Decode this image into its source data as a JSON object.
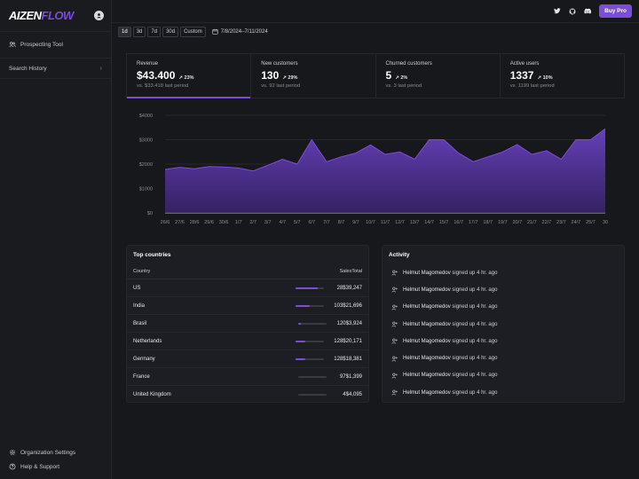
{
  "app": {
    "logo_part1": "AIZEN",
    "logo_part2": "FLOW"
  },
  "sidebar": {
    "items": [
      {
        "label": "Prospecting Tool",
        "icon": "users-icon"
      },
      {
        "label": "Search History",
        "icon": "chevron-right-icon"
      }
    ],
    "bottom": [
      {
        "label": "Organization Settings",
        "icon": "gear-icon"
      },
      {
        "label": "Help & Support",
        "icon": "help-icon"
      }
    ]
  },
  "topbar": {
    "buy_label": "Buy Pro",
    "accent": "#7c4dd8"
  },
  "filters": {
    "ranges": [
      "1d",
      "3d",
      "7d",
      "30d",
      "Custom"
    ],
    "selected": "1d",
    "date_range": "7/8/2024–7/11/2024"
  },
  "stats": [
    {
      "label": "Revenue",
      "value": "$43.400",
      "delta": "23%",
      "prev": "vs. $33.418 last period"
    },
    {
      "label": "New customers",
      "value": "130",
      "delta": "29%",
      "prev": "vs. 92 last period"
    },
    {
      "label": "Churned customers",
      "value": "5",
      "delta": "2%",
      "prev": "vs. 3 last period"
    },
    {
      "label": "Active users",
      "value": "1337",
      "delta": "10%",
      "prev": "vs. 1199 last period"
    }
  ],
  "chart_data": {
    "type": "area",
    "x": [
      "26/6",
      "27/6",
      "28/6",
      "29/6",
      "30/6",
      "1/7",
      "2/7",
      "3/7",
      "4/7",
      "5/7",
      "6/7",
      "7/7",
      "8/7",
      "9/7",
      "10/7",
      "11/7",
      "12/7",
      "13/7",
      "14/7",
      "15/7",
      "16/7",
      "17/7",
      "18/7",
      "19/7",
      "20/7",
      "21/7",
      "22/7",
      "23/7",
      "24/7",
      "25/7",
      "30"
    ],
    "series": [
      {
        "values": [
          1780,
          1870,
          1810,
          1900,
          1880,
          1840,
          1720,
          1950,
          2200,
          2000,
          3000,
          2100,
          2300,
          2450,
          2790,
          2400,
          2500,
          2200,
          3000,
          3000,
          2450,
          2100,
          2300,
          2500,
          2800,
          2400,
          2550,
          2200,
          3000,
          3000,
          3450
        ]
      }
    ],
    "yticks": [
      "$4000",
      "$3000",
      "$2000",
      "$1000",
      "$0"
    ],
    "ylim": [
      0,
      4000
    ],
    "grid": true,
    "color": "#6a42c2"
  },
  "countries": {
    "title": "Top countries",
    "headers": {
      "country": "Country",
      "sales": "Sales",
      "total": "Total"
    },
    "rows": [
      {
        "country": "US",
        "sales": "28",
        "total": "$39,247",
        "bar": 0.78
      },
      {
        "country": "India",
        "sales": "103",
        "total": "$21,696",
        "bar": 0.5
      },
      {
        "country": "Brasil",
        "sales": "120",
        "total": "$3,924",
        "bar": 0.12
      },
      {
        "country": "Netherlands",
        "sales": "128",
        "total": "$20,171",
        "bar": 0.34
      },
      {
        "country": "Germany",
        "sales": "128",
        "total": "$18,381",
        "bar": 0.32
      },
      {
        "country": "France",
        "sales": "97",
        "total": "$1,399",
        "bar": 0.0
      },
      {
        "country": "United Kingdom",
        "sales": "4",
        "total": "$4,095",
        "bar": 0.0
      }
    ]
  },
  "activity": {
    "title": "Activity",
    "items": [
      {
        "name": "Helmut Magomedov",
        "text": "signed up 4 hr. ago"
      },
      {
        "name": "Helmut Magomedov",
        "text": "signed up 4 hr. ago"
      },
      {
        "name": "Helmut Magomedov",
        "text": "signed up 4 hr. ago"
      },
      {
        "name": "Helmut Magomedov",
        "text": "signed up 4 hr. ago"
      },
      {
        "name": "Helmut Magomedov",
        "text": "signed up 4 hr. ago"
      },
      {
        "name": "Helmut Magomedov",
        "text": "signed up 4 hr. ago"
      },
      {
        "name": "Helmut Magomedov",
        "text": "signed up 4 hr. ago"
      },
      {
        "name": "Helmut Magomedov",
        "text": "signed up 4 hr. ago"
      }
    ]
  }
}
